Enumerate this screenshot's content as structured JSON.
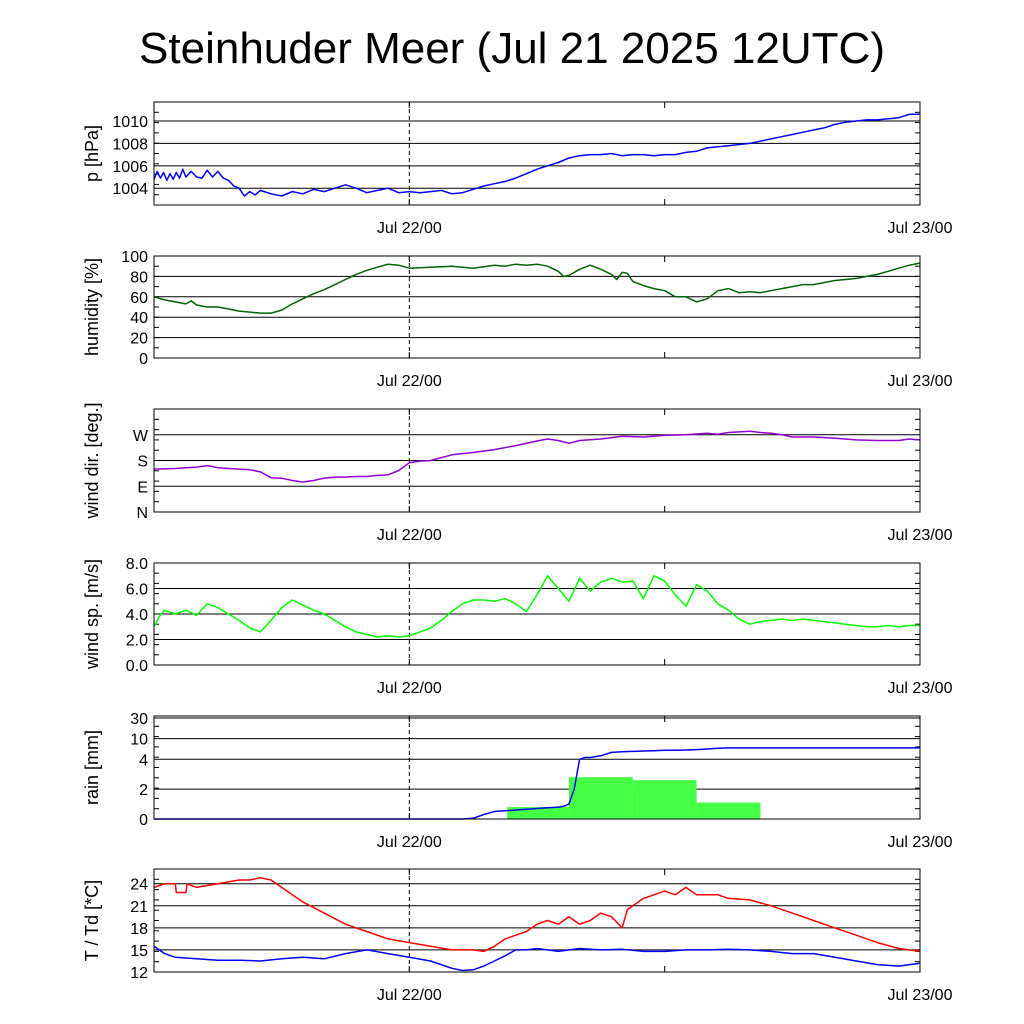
{
  "title": "Steinhuder Meer (Jul 21 2025 12UTC)",
  "x_tick_labels": [
    "Jul 22/00",
    "Jul 23/00"
  ],
  "chart_data": [
    {
      "type": "line",
      "ylabel": "p [hPa]",
      "ylim": [
        1002.5,
        1011.7
      ],
      "yticks": [
        1004,
        1006,
        1008,
        1010
      ],
      "yticklabels": [
        "1004",
        "1006",
        "1008",
        "1010"
      ],
      "xlim": [
        0,
        72
      ],
      "vline_x": 24,
      "series": [
        {
          "color": "#0000ff",
          "x": [
            0,
            0.3,
            0.6,
            0.9,
            1.2,
            1.5,
            1.8,
            2.1,
            2.4,
            2.7,
            3,
            3.5,
            4,
            4.5,
            5,
            5.5,
            6,
            6.5,
            7,
            7.5,
            8,
            8.5,
            9,
            9.5,
            10,
            11,
            12,
            13,
            14,
            15,
            16,
            17,
            18,
            19,
            20,
            21,
            22,
            23,
            24,
            25,
            26,
            27,
            28,
            29,
            30,
            31,
            32,
            33,
            34,
            35,
            36,
            37,
            38,
            39,
            40,
            41,
            42,
            43,
            44,
            45,
            46,
            47,
            48,
            49,
            50,
            51,
            52,
            53,
            54,
            55,
            56,
            57,
            58,
            59,
            60,
            61,
            62,
            63,
            64,
            65,
            66,
            67,
            68,
            69,
            70,
            71,
            72
          ],
          "y": [
            1004.8,
            1005.5,
            1004.9,
            1005.4,
            1004.7,
            1005.3,
            1004.8,
            1005.4,
            1004.9,
            1005.7,
            1005.0,
            1005.5,
            1005.0,
            1004.9,
            1005.6,
            1005.0,
            1005.5,
            1004.9,
            1004.7,
            1004.2,
            1004.0,
            1003.3,
            1003.7,
            1003.4,
            1003.8,
            1003.5,
            1003.3,
            1003.7,
            1003.5,
            1003.9,
            1003.7,
            1004.0,
            1004.3,
            1004.0,
            1003.6,
            1003.8,
            1004.0,
            1003.6,
            1003.7,
            1003.6,
            1003.7,
            1003.8,
            1003.5,
            1003.6,
            1003.9,
            1004.2,
            1004.4,
            1004.6,
            1004.9,
            1005.3,
            1005.7,
            1006.0,
            1006.3,
            1006.7,
            1006.9,
            1007.0,
            1007.0,
            1007.1,
            1006.9,
            1007.0,
            1007.0,
            1006.9,
            1007.0,
            1007.0,
            1007.2,
            1007.3,
            1007.6,
            1007.7,
            1007.8,
            1007.9,
            1008.0,
            1008.2,
            1008.4,
            1008.6,
            1008.8,
            1009.0,
            1009.2,
            1009.4,
            1009.7,
            1009.9,
            1010.0,
            1010.1,
            1010.1,
            1010.2,
            1010.3,
            1010.6,
            1010.6
          ]
        }
      ]
    },
    {
      "type": "line",
      "ylabel": "humidity [%]",
      "ylim": [
        0,
        100
      ],
      "yticks": [
        0,
        20,
        40,
        60,
        80,
        100
      ],
      "yticklabels": [
        "0",
        "20",
        "40",
        "60",
        "80",
        "100"
      ],
      "xlim": [
        0,
        72
      ],
      "vline_x": 24,
      "series": [
        {
          "color": "#006400",
          "x": [
            0,
            1,
            2,
            3,
            3.5,
            4,
            5,
            6,
            7,
            8,
            9,
            10,
            11,
            12,
            13,
            14,
            15,
            16,
            17,
            18,
            19,
            20,
            21,
            22,
            23,
            24,
            26,
            28,
            30,
            32,
            33,
            34,
            35,
            36,
            37,
            38,
            38.5,
            39,
            40,
            41,
            42,
            43,
            43.5,
            44,
            44.5,
            45,
            46,
            47,
            48,
            49,
            50,
            51,
            52,
            53,
            54,
            55,
            56,
            57,
            58,
            59,
            60,
            61,
            62,
            63,
            64,
            65,
            66,
            67,
            68,
            69,
            70,
            71,
            72
          ],
          "y": [
            60,
            57,
            55,
            53,
            56,
            52,
            50,
            50,
            48,
            46,
            45,
            44,
            44,
            47,
            53,
            58,
            63,
            67,
            72,
            77,
            82,
            86,
            89,
            92,
            91,
            88,
            89,
            90,
            88,
            91,
            90,
            92,
            91,
            92,
            90,
            85,
            80,
            81,
            87,
            91,
            87,
            82,
            77,
            84,
            83,
            75,
            71,
            68,
            66,
            60,
            60,
            55,
            58,
            66,
            68,
            64,
            65,
            64,
            66,
            68,
            70,
            72,
            72,
            74,
            76,
            77,
            78,
            80,
            82,
            85,
            88,
            91,
            93
          ]
        }
      ]
    },
    {
      "type": "line",
      "ylabel": "wind dir. [deg.]",
      "ylim": [
        0,
        360
      ],
      "yticks": [
        0,
        90,
        180,
        270
      ],
      "yticklabels": [
        "N",
        "E",
        "S",
        "W"
      ],
      "xlim": [
        0,
        72
      ],
      "vline_x": 24,
      "series": [
        {
          "color": "#9400d3",
          "x": [
            0,
            2,
            4,
            5,
            6,
            7,
            8,
            9,
            10,
            11,
            12,
            13,
            14,
            15,
            16,
            17,
            18,
            19,
            20,
            21,
            22,
            23,
            24,
            25,
            26,
            28,
            30,
            32,
            34,
            36,
            37,
            38,
            39,
            40,
            42,
            44,
            46,
            48,
            50,
            52,
            53,
            54,
            55,
            56,
            57,
            58,
            59,
            60,
            62,
            64,
            66,
            68,
            70,
            71,
            72
          ],
          "y": [
            150,
            152,
            157,
            162,
            155,
            152,
            150,
            148,
            140,
            120,
            118,
            110,
            105,
            110,
            118,
            122,
            122,
            124,
            124,
            128,
            130,
            145,
            172,
            178,
            180,
            200,
            208,
            218,
            232,
            248,
            255,
            250,
            240,
            250,
            255,
            265,
            262,
            268,
            270,
            275,
            272,
            278,
            280,
            282,
            278,
            275,
            270,
            262,
            262,
            258,
            252,
            250,
            250,
            255,
            252
          ]
        }
      ]
    },
    {
      "type": "line",
      "ylabel": "wind sp. [m/s]",
      "ylim": [
        0,
        8.0
      ],
      "yticks": [
        0,
        2,
        4,
        6,
        8
      ],
      "yticklabels": [
        "0.0",
        "2.0",
        "4.0",
        "6.0",
        "8.0"
      ],
      "xlim": [
        0,
        72
      ],
      "vline_x": 24,
      "series": [
        {
          "color": "#00ff00",
          "x": [
            0,
            0.5,
            1,
            2,
            3,
            4,
            5,
            6,
            7,
            8,
            9,
            10,
            11,
            12,
            13,
            14,
            15,
            16,
            17,
            18,
            19,
            20,
            21,
            22,
            23,
            24,
            25,
            26,
            27,
            28,
            29,
            30,
            31,
            32,
            33,
            34,
            35,
            36,
            37,
            38,
            39,
            40,
            41,
            42,
            43,
            44,
            45,
            46,
            47,
            48,
            49,
            50,
            51,
            52,
            53,
            54,
            55,
            56,
            57,
            58,
            59,
            60,
            61,
            62,
            63,
            64,
            65,
            66,
            67,
            68,
            69,
            70,
            71,
            72
          ],
          "y": [
            3.0,
            3.8,
            4.3,
            4.0,
            4.3,
            3.9,
            4.8,
            4.5,
            4.0,
            3.5,
            2.9,
            2.6,
            3.5,
            4.5,
            5.1,
            4.7,
            4.3,
            4.0,
            3.5,
            3.0,
            2.6,
            2.4,
            2.2,
            2.3,
            2.2,
            2.3,
            2.6,
            2.9,
            3.5,
            4.2,
            4.8,
            5.1,
            5.1,
            5.0,
            5.2,
            4.8,
            4.2,
            5.5,
            7.0,
            6.0,
            5.0,
            6.8,
            5.8,
            6.5,
            6.8,
            6.5,
            6.6,
            5.2,
            7.0,
            6.6,
            5.5,
            4.6,
            6.3,
            5.8,
            4.8,
            4.3,
            3.6,
            3.2,
            3.4,
            3.5,
            3.6,
            3.5,
            3.6,
            3.5,
            3.4,
            3.3,
            3.2,
            3.1,
            3.0,
            3.0,
            3.1,
            3.0,
            3.1,
            3.1
          ]
        }
      ]
    },
    {
      "type": "bar+line",
      "ylabel": "rain [mm]",
      "ylim": [
        0,
        30
      ],
      "scale": "nonlinear",
      "yticks": [
        0,
        2,
        4,
        10,
        30
      ],
      "yticklabels": [
        "0",
        "2",
        "4",
        "10",
        "30"
      ],
      "xlim": [
        0,
        72
      ],
      "vline_x": 24,
      "bars": [
        {
          "x0": 33.2,
          "x1": 39.0,
          "value": 0.8
        },
        {
          "x0": 39.0,
          "x1": 45.0,
          "value": 2.8
        },
        {
          "x0": 45.0,
          "x1": 51.0,
          "value": 2.6
        },
        {
          "x0": 51.0,
          "x1": 57.0,
          "value": 1.1
        }
      ],
      "bar_color": "#44ff44",
      "series": [
        {
          "color": "#0000ff",
          "x": [
            0,
            29,
            30,
            31,
            32,
            33,
            34,
            35,
            36,
            37,
            38,
            38.5,
            39,
            39.5,
            40,
            40.5,
            41,
            42,
            43,
            44,
            45,
            46,
            47,
            48,
            49,
            50,
            51,
            52,
            53,
            54,
            55,
            56,
            57,
            58,
            60,
            64,
            68,
            72
          ],
          "y": [
            0,
            0,
            0.05,
            0.3,
            0.5,
            0.55,
            0.6,
            0.65,
            0.7,
            0.75,
            0.8,
            0.85,
            1.0,
            2.0,
            4.0,
            4.5,
            4.5,
            5.0,
            6.0,
            6.2,
            6.3,
            6.4,
            6.5,
            6.6,
            6.6,
            6.7,
            6.8,
            7.0,
            7.2,
            7.3,
            7.3,
            7.3,
            7.3,
            7.3,
            7.3,
            7.3,
            7.3,
            7.3
          ]
        }
      ]
    },
    {
      "type": "line",
      "ylabel": "T / Td [*C]",
      "ylim": [
        12,
        26
      ],
      "yticks": [
        12,
        15,
        18,
        21,
        24
      ],
      "yticklabels": [
        "12",
        "15",
        "18",
        "21",
        "24"
      ],
      "xlim": [
        0,
        72
      ],
      "vline_x": 24,
      "series": [
        {
          "color": "#ff0000",
          "x": [
            0,
            1,
            2,
            2.1,
            3,
            3.1,
            4,
            6,
            8,
            9,
            10,
            11,
            12,
            13,
            14,
            16,
            18,
            20,
            22,
            24,
            26,
            28,
            30,
            31,
            32,
            33,
            34,
            35,
            36,
            37,
            38,
            39,
            40,
            41,
            42,
            43,
            44,
            44.5,
            45,
            46,
            47,
            48,
            49,
            50,
            51,
            52,
            53,
            54,
            56,
            58,
            60,
            62,
            64,
            66,
            68,
            70,
            72
          ],
          "y": [
            23.5,
            24.0,
            24.0,
            22.8,
            22.8,
            24.0,
            23.5,
            24.0,
            24.5,
            24.5,
            24.8,
            24.5,
            23.5,
            22.5,
            21.5,
            20.0,
            18.5,
            17.5,
            16.5,
            16.0,
            15.5,
            15.0,
            15.0,
            14.8,
            15.5,
            16.5,
            17.0,
            17.5,
            18.5,
            19.0,
            18.5,
            19.5,
            18.5,
            19.0,
            20.0,
            19.5,
            18.0,
            20.5,
            21.0,
            22.0,
            22.5,
            23.0,
            22.5,
            23.5,
            22.5,
            22.5,
            22.5,
            22.0,
            21.8,
            21.0,
            20.0,
            19.0,
            18.0,
            17.0,
            16.0,
            15.2,
            14.8
          ]
        },
        {
          "color": "#0000ff",
          "x": [
            0,
            1,
            2,
            4,
            6,
            8,
            10,
            12,
            14,
            16,
            18,
            20,
            22,
            24,
            26,
            28,
            29,
            30,
            31,
            32,
            33,
            34,
            35,
            36,
            37,
            38,
            40,
            42,
            44,
            46,
            48,
            50,
            52,
            54,
            56,
            58,
            60,
            62,
            64,
            66,
            68,
            70,
            72
          ],
          "y": [
            15.5,
            14.5,
            14.0,
            13.8,
            13.6,
            13.6,
            13.5,
            13.8,
            14.0,
            13.8,
            14.5,
            15.0,
            14.5,
            14.0,
            13.5,
            12.5,
            12.2,
            12.3,
            12.8,
            13.5,
            14.2,
            15.0,
            15.0,
            15.2,
            15.0,
            14.8,
            15.2,
            15.0,
            15.1,
            14.8,
            14.8,
            15.0,
            15.0,
            15.1,
            15.0,
            14.8,
            14.5,
            14.5,
            14.0,
            13.5,
            13.0,
            12.8,
            13.2
          ]
        }
      ]
    }
  ]
}
